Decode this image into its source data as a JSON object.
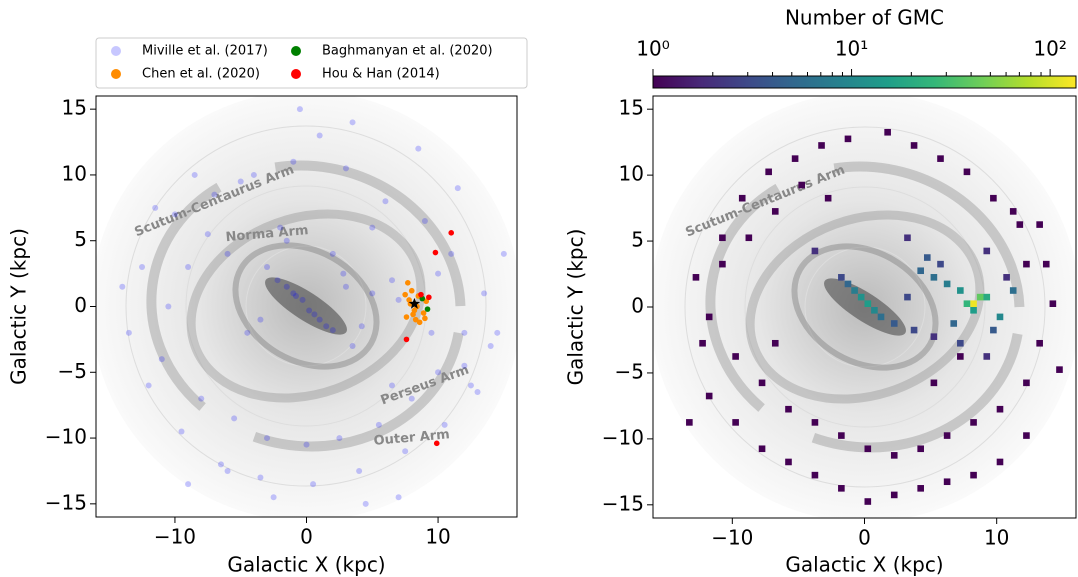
{
  "chart_data": [
    {
      "type": "scatter",
      "xlabel": "Galactic X (kpc)",
      "ylabel": "Galactic Y (kpc)",
      "xlim": [
        -16,
        16
      ],
      "ylim": [
        -16,
        16
      ],
      "xticks": [
        {
          "value": -10,
          "label": "−10"
        },
        0,
        10
      ],
      "yticks": [
        {
          "value": -15,
          "label": "−15"
        },
        {
          "value": -10,
          "label": "−10"
        },
        {
          "value": -5,
          "label": "−5"
        },
        0,
        5,
        10,
        15
      ],
      "legend": "above",
      "annotations": [
        "Scutum-Centaurus Arm",
        "Norma Arm",
        "Perseus Arm",
        "Outer Arm"
      ],
      "sun": {
        "x": 8.2,
        "y": 0.2,
        "color": "#000000"
      },
      "series": [
        {
          "name": "Miville et al. (2017)",
          "color": "#0000ff",
          "alpha": 0.22,
          "x": [
            -1.5,
            -0.8,
            0.2,
            1.0,
            -2.2,
            -0.3,
            0.6,
            -1.0,
            1.5,
            2.0,
            -3.0,
            3.5,
            5.0,
            6.5,
            7.0,
            4.2,
            2.8,
            -4.5,
            -6.0,
            -7.5,
            -9.0,
            -10.5,
            -11.0,
            -8.0,
            -5.5,
            -3.0,
            0.0,
            2.5,
            5.5,
            8.0,
            10.0,
            12.0,
            13.5,
            11.0,
            9.0,
            6.0,
            3.0,
            -1.0,
            -4.0,
            -7.0,
            -10.0,
            -12.5,
            -13.5,
            -12.0,
            -9.5,
            -6.5,
            -3.5,
            0.5,
            4.0,
            7.5,
            10.5,
            12.5,
            14.0,
            15.0,
            11.5,
            8.5,
            9.5,
            10.0,
            12.0,
            6.5,
            -2.0,
            -5.0,
            -8.5,
            -11.5,
            1.0,
            3.5,
            -0.5,
            -2.5,
            4.5,
            7.0,
            -6.0,
            -9.0,
            -1.5,
            2.0,
            5.0,
            13.0,
            -14.0,
            14.5,
            -3.5,
            3.0
          ],
          "y": [
            1.5,
            0.8,
            -0.3,
            -1.0,
            2.0,
            0.5,
            -0.6,
            1.0,
            -1.5,
            -1.8,
            3.0,
            -3.0,
            1.0,
            2.0,
            0.5,
            -1.5,
            2.5,
            -2.0,
            4.0,
            5.5,
            3.0,
            0.0,
            -4.0,
            -7.0,
            -8.5,
            -10.0,
            -10.5,
            -10.0,
            -9.0,
            -7.0,
            -5.0,
            -2.0,
            1.0,
            4.0,
            6.5,
            8.0,
            10.5,
            11.0,
            10.0,
            8.5,
            7.0,
            3.0,
            -2.0,
            -6.0,
            -9.5,
            -12.0,
            -13.0,
            -13.5,
            -12.5,
            -11.0,
            -9.0,
            -6.0,
            -3.0,
            4.0,
            9.0,
            12.0,
            -2.0,
            2.5,
            -4.5,
            -6.0,
            6.0,
            9.5,
            10.0,
            7.5,
            13.0,
            14.0,
            15.0,
            -14.5,
            -15.0,
            -14.5,
            -12.5,
            -13.5,
            5.0,
            4.0,
            6.0,
            -6.5,
            1.5,
            -2.0,
            -1.0,
            1.5
          ]
        },
        {
          "name": "Chen et al. (2020)",
          "color": "#ff8c00",
          "alpha": 1,
          "x": [
            7.8,
            8.2,
            8.5,
            7.6,
            8.9,
            8.0,
            8.3,
            7.9,
            9.1,
            8.6,
            7.7,
            8.4,
            8.1,
            9.0,
            7.5
          ],
          "y": [
            0.5,
            -0.3,
            0.8,
            -0.8,
            -0.5,
            1.2,
            -1.0,
            0.2,
            0.4,
            -1.2,
            1.8,
            0.0,
            -0.6,
            -0.9,
            0.9
          ]
        },
        {
          "name": "Baghmanyan et al. (2020)",
          "color": "#008000",
          "alpha": 1,
          "x": [
            8.8,
            9.2
          ],
          "y": [
            0.6,
            -0.2
          ]
        },
        {
          "name": "Hou & Han (2014)",
          "color": "#ff0000",
          "alpha": 1,
          "x": [
            11.0,
            9.8,
            8.7,
            9.3,
            7.6,
            9.9
          ],
          "y": [
            5.6,
            4.1,
            0.9,
            0.7,
            -2.5,
            -10.4
          ]
        }
      ]
    },
    {
      "type": "heatmap",
      "xlabel": "Galactic X (kpc)",
      "ylabel": "Galactic Y (kpc)",
      "xlim": [
        -16,
        16
      ],
      "ylim": [
        -16,
        16
      ],
      "xticks": [
        {
          "value": -10,
          "label": "−10"
        },
        0,
        10
      ],
      "yticks": [
        {
          "value": -15,
          "label": "−15"
        },
        {
          "value": -10,
          "label": "−10"
        },
        {
          "value": -5,
          "label": "−5"
        },
        0,
        5,
        10,
        15
      ],
      "annotations": [
        "Scutum-Centaurus Arm"
      ],
      "bin_width": 0.5,
      "colormap": "viridis",
      "colorbar_label": "Number of GMC",
      "colorbar_scale": "log",
      "clim": [
        1,
        135
      ],
      "cticks": [
        {
          "value": 1,
          "label": "10⁰"
        },
        {
          "value": 10,
          "label": "10¹"
        },
        {
          "value": 100,
          "label": "10²"
        }
      ],
      "cminor_ticks": [
        2,
        3,
        4,
        5,
        6,
        7,
        8,
        9,
        20,
        30,
        40,
        50,
        60,
        70,
        80,
        90
      ],
      "x": [
        8,
        8.5,
        7.5,
        8,
        9,
        7,
        6,
        5,
        4,
        10,
        11,
        9.5,
        6.5,
        5.5,
        4.5,
        3,
        -1,
        -0.5,
        0,
        0.5,
        -1.5,
        1,
        -2,
        2,
        7,
        9,
        10.5,
        12,
        3.5,
        5,
        -3,
        -5,
        -7,
        -9,
        -11,
        -12,
        -10,
        -8,
        -6,
        -4,
        -2,
        0,
        2,
        4,
        6,
        8,
        10,
        12,
        13,
        14,
        -13,
        -12.5,
        -11,
        -9.5,
        -7.5,
        -5.5,
        -3.5,
        -1.5,
        1.5,
        3.5,
        5.5,
        7.5,
        9.5,
        11.5,
        13.5,
        14.5,
        12,
        10,
        8,
        6,
        4,
        2,
        0,
        -2,
        -4,
        -6,
        -8,
        -10,
        -12,
        -13.5,
        9,
        11,
        13,
        -7,
        -4,
        5,
        7,
        3
      ],
      "y": [
        0,
        0.5,
        0,
        -0.5,
        0.5,
        1,
        1.5,
        2,
        2.5,
        -1,
        1,
        -2,
        -1.5,
        3,
        3.5,
        0.5,
        1,
        0.5,
        0,
        -0.5,
        1.5,
        -1,
        2,
        -1.5,
        -3,
        -4,
        2,
        3,
        -2,
        -2.5,
        8,
        9,
        7,
        5,
        3,
        -1,
        -4,
        -6,
        -8,
        -9,
        -10,
        -11,
        -11.5,
        -11,
        -10,
        -9,
        -8,
        -6,
        -3,
        0,
        2,
        -3,
        5,
        8,
        10,
        11,
        12,
        12.5,
        13,
        12,
        11,
        10,
        8,
        6,
        3,
        -5,
        -10,
        -12,
        -13,
        -13.5,
        -14,
        -14.5,
        -15,
        -14,
        -13,
        -12,
        -11,
        -9,
        -7,
        -9,
        4,
        7,
        6,
        -3,
        4,
        -6,
        -4,
        5
      ],
      "values": [
        120,
        40,
        25,
        15,
        20,
        12,
        8,
        6,
        5,
        10,
        6,
        4,
        5,
        3,
        4,
        3,
        8,
        12,
        15,
        10,
        5,
        6,
        3,
        4,
        3,
        2,
        2,
        1,
        3,
        2,
        1,
        1,
        1,
        1,
        1,
        1,
        1,
        1,
        1,
        1,
        1,
        1,
        1,
        1,
        1,
        1,
        1,
        1,
        1,
        1,
        1,
        1,
        1,
        1,
        1,
        1,
        1,
        1,
        1,
        1,
        1,
        1,
        1,
        1,
        1,
        1,
        1,
        1,
        1,
        1,
        1,
        1,
        1,
        1,
        1,
        1,
        1,
        1,
        1,
        1,
        2,
        1,
        1,
        1,
        2,
        1,
        1,
        2
      ]
    }
  ]
}
